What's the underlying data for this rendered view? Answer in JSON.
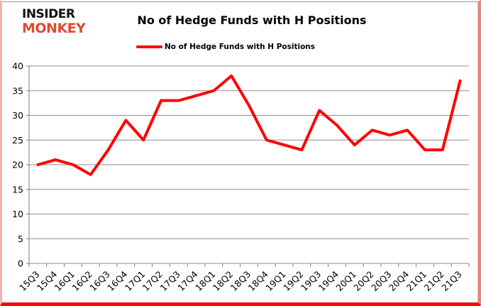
{
  "brand": {
    "line1": "INSIDER",
    "line2": "MONKEY",
    "accent_color": "#e2492f",
    "text_color": "#111111"
  },
  "title": "No of Hedge Funds with H Positions",
  "legend": {
    "label": "No of Hedge Funds with H Positions",
    "swatch_color": "#ff0000"
  },
  "chart_data": {
    "type": "line",
    "title": "No of Hedge Funds with H Positions",
    "categories": [
      "15Q3",
      "15Q4",
      "16Q1",
      "16Q2",
      "16Q3",
      "16Q4",
      "17Q1",
      "17Q2",
      "17Q3",
      "17Q4",
      "18Q1",
      "18Q2",
      "18Q3",
      "18Q4",
      "19Q1",
      "19Q2",
      "19Q3",
      "19Q4",
      "20Q1",
      "20Q2",
      "20Q3",
      "20Q4",
      "21Q1",
      "21Q2",
      "21Q3"
    ],
    "series": [
      {
        "name": "No of Hedge Funds with H Positions",
        "color": "#ff0000",
        "values": [
          20,
          21,
          20,
          18,
          23,
          29,
          25,
          33,
          33,
          34,
          35,
          38,
          32,
          25,
          24,
          23,
          31,
          28,
          24,
          27,
          26,
          27,
          23,
          23,
          37
        ]
      }
    ],
    "xlabel": "",
    "ylabel": "",
    "ylim": [
      0,
      40
    ],
    "ytick_step": 5,
    "grid": true,
    "legend_position": "top",
    "colors": {
      "gridline": "#8e8e8e",
      "axis": "#7f7f7f",
      "label": "#000000",
      "background": "#ffffff"
    }
  }
}
